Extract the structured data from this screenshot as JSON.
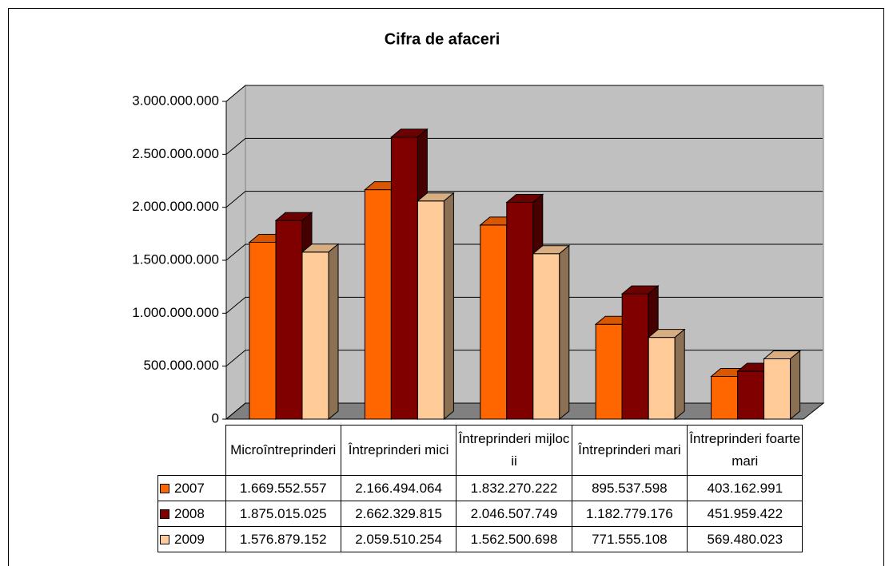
{
  "chart_data": {
    "type": "bar3d",
    "title": "Cifra de afaceri",
    "categories": [
      "Microîntreprinderi",
      "Întreprinderi mici",
      "Întreprinderi mijlocii",
      "Întreprinderi mari",
      "Întreprinderi foarte mari"
    ],
    "series": [
      {
        "name": "2007",
        "color": "#ff6600",
        "values": [
          1669552557,
          2166494064,
          1832270222,
          895537598,
          403162991
        ],
        "value_labels": [
          "1.669.552.557",
          "2.166.494.064",
          "1.832.270.222",
          "895.537.598",
          "403.162.991"
        ]
      },
      {
        "name": "2008",
        "color": "#800000",
        "values": [
          1875015025,
          2662329815,
          2046507749,
          1182779176,
          451959422
        ],
        "value_labels": [
          "1.875.015.025",
          "2.662.329.815",
          "2.046.507.749",
          "1.182.779.176",
          "451.959.422"
        ]
      },
      {
        "name": "2009",
        "color": "#ffcc99",
        "values": [
          1576879152,
          2059510254,
          1562500698,
          771555108,
          569480023
        ],
        "value_labels": [
          "1.576.879.152",
          "2.059.510.254",
          "1.562.500.698",
          "771.555.108",
          "569.480.023"
        ]
      }
    ],
    "ylim": [
      0,
      3000000000
    ],
    "yticks": [
      0,
      {
        "value": 500000000,
        "label": "500.000.000"
      },
      {
        "value": 1000000000,
        "label": "1.000.000.000"
      },
      {
        "value": 1500000000,
        "label": "1.500.000.000"
      },
      {
        "value": 2000000000,
        "label": "2.000.000.000"
      },
      {
        "value": 2500000000,
        "label": "2.500.000.000"
      },
      {
        "value": 3000000000,
        "label": "3.000.000.000"
      }
    ],
    "grid": true
  }
}
